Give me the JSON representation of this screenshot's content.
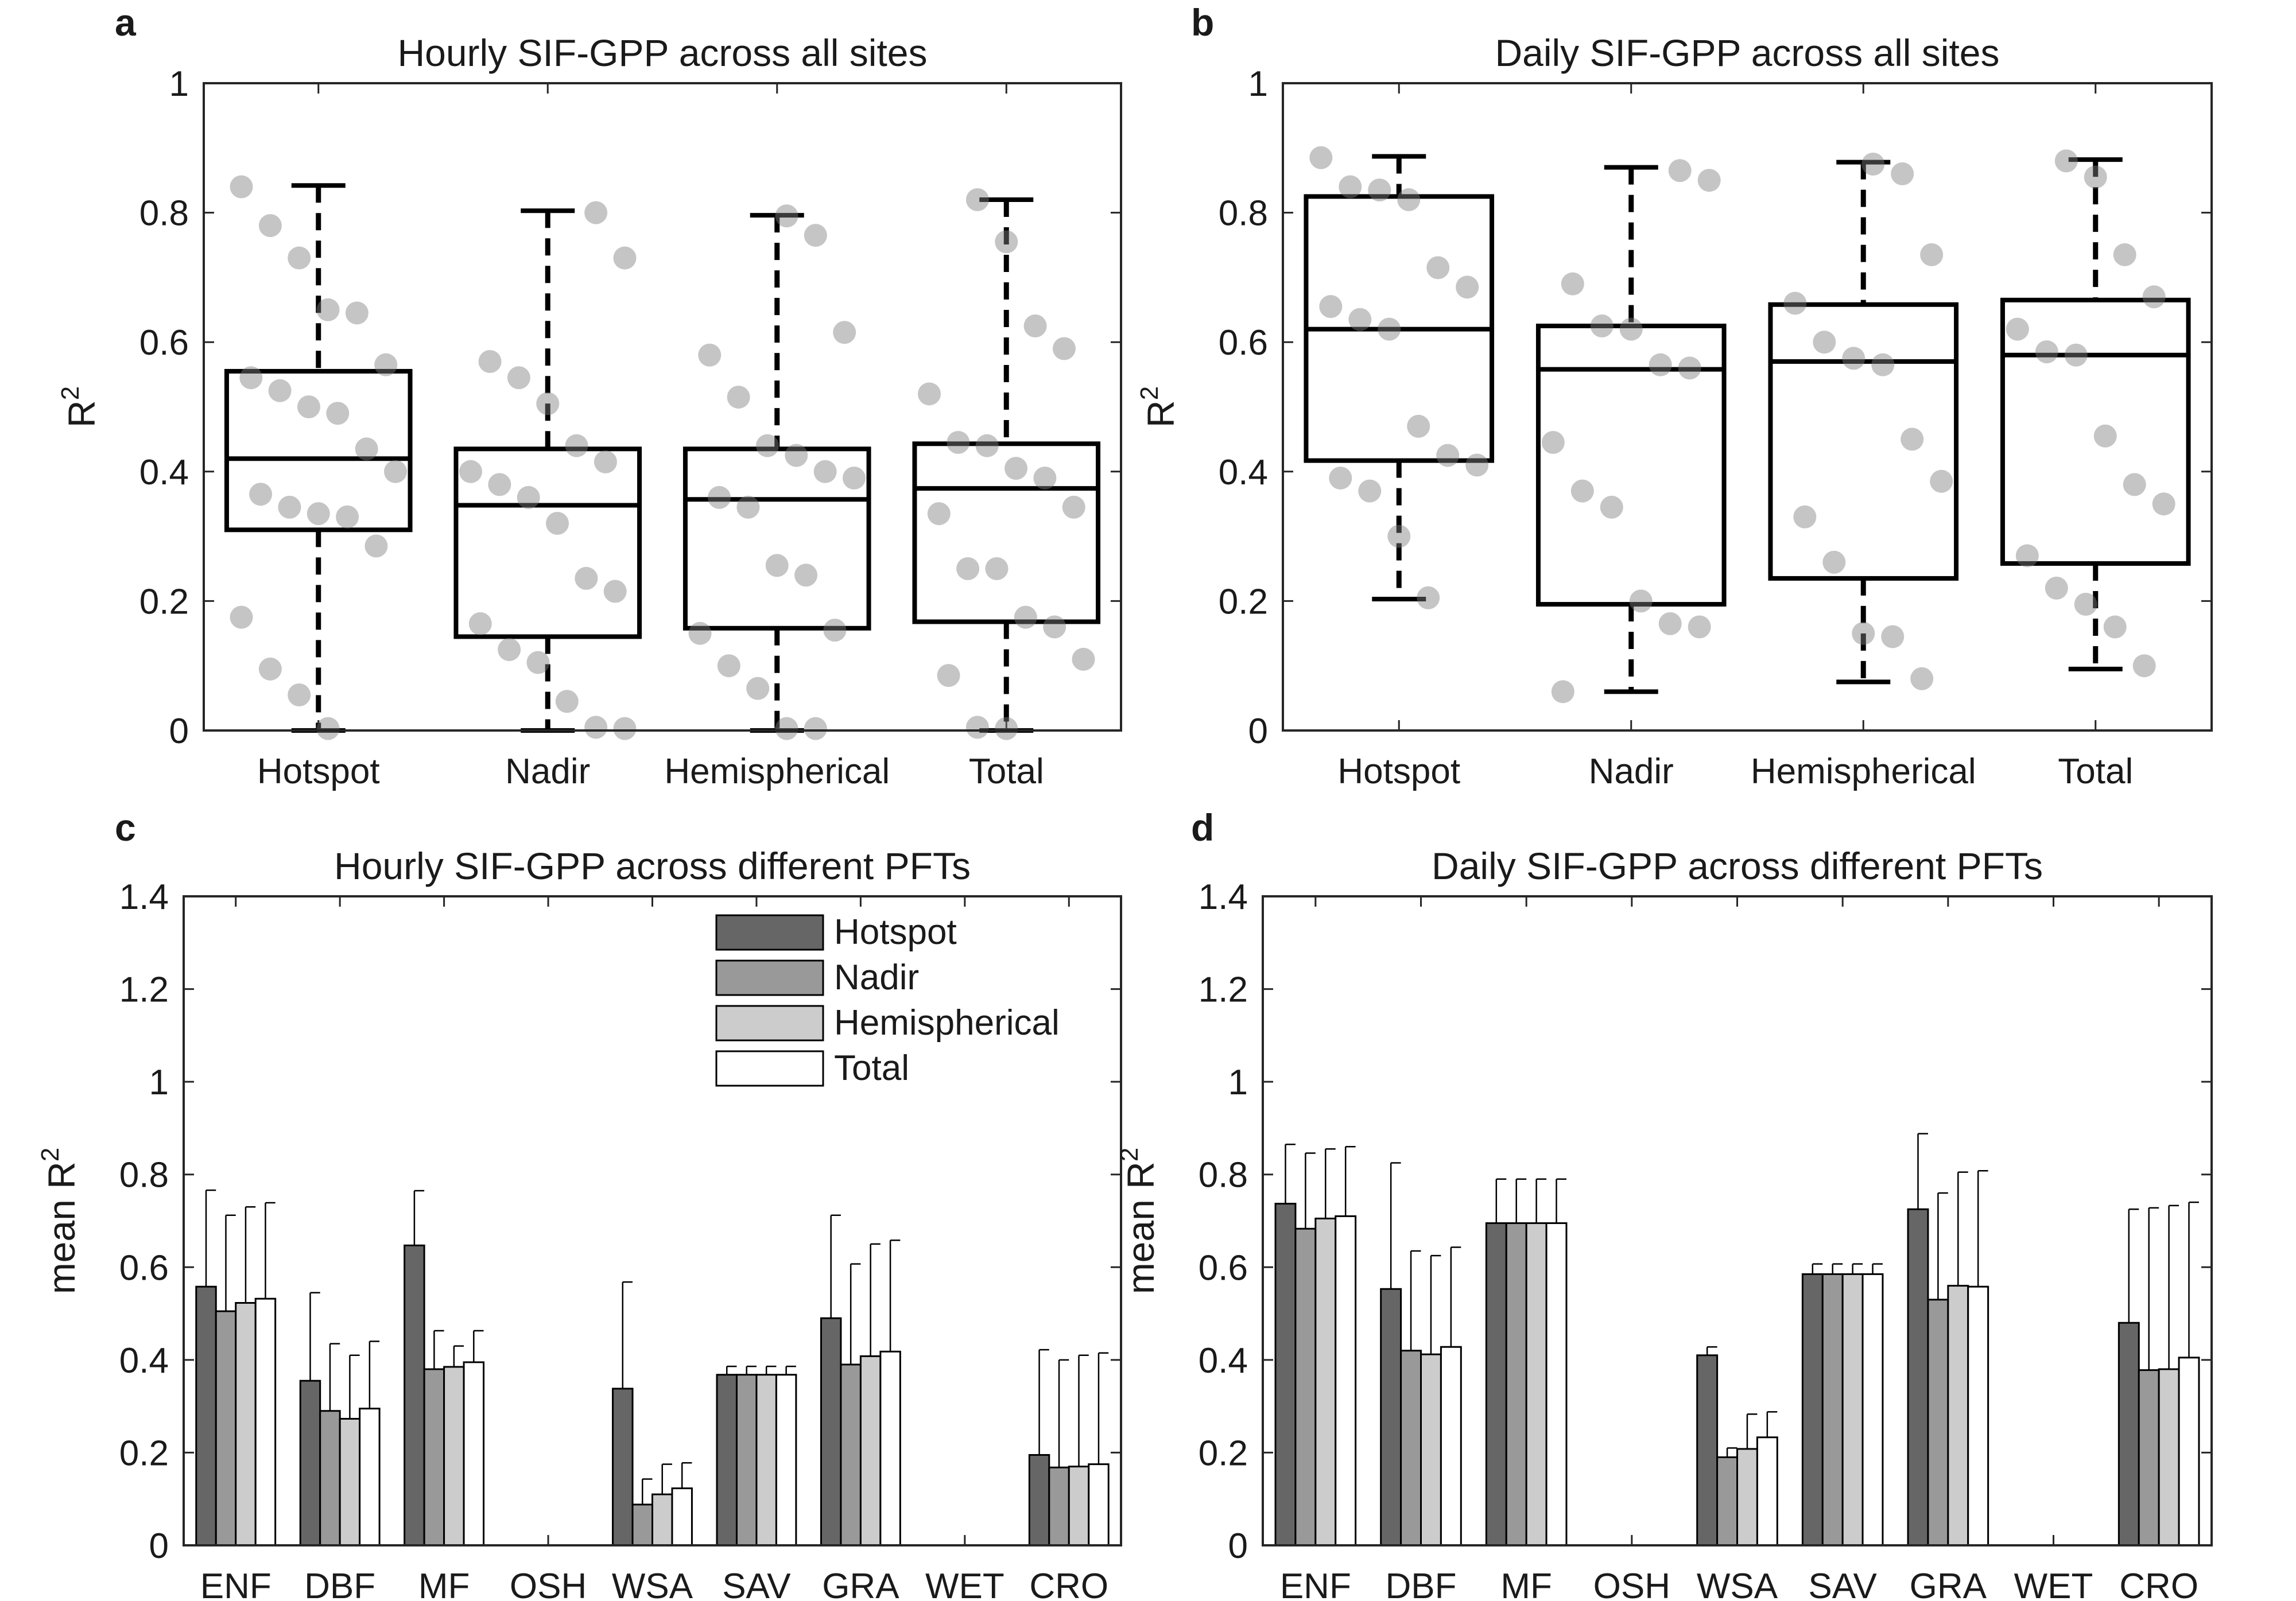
{
  "chart_data": [
    {
      "panel": "a",
      "type": "box",
      "title": "Hourly SIF-GPP across all sites",
      "ylabel": "R",
      "ylabel_sup": "2",
      "ylim": [
        0,
        1
      ],
      "yticks": [
        "0",
        "0.2",
        "0.4",
        "0.6",
        "0.8",
        "1"
      ],
      "categories": [
        "Hotspot",
        "Nadir",
        "Hemispherical",
        "Total"
      ],
      "boxes": [
        {
          "min": 0.0,
          "q1": 0.31,
          "median": 0.42,
          "q3": 0.555,
          "max": 0.842
        },
        {
          "min": 0.0,
          "q1": 0.145,
          "median": 0.348,
          "q3": 0.435,
          "max": 0.803
        },
        {
          "min": 0.0,
          "q1": 0.158,
          "median": 0.357,
          "q3": 0.435,
          "max": 0.796
        },
        {
          "min": 0.0,
          "q1": 0.168,
          "median": 0.374,
          "q3": 0.443,
          "max": 0.82
        }
      ],
      "points": [
        [
          0.84,
          0.78,
          0.73,
          0.65,
          0.645,
          0.565,
          0.545,
          0.525,
          0.5,
          0.49,
          0.435,
          0.4,
          0.365,
          0.345,
          0.335,
          0.33,
          0.285,
          0.175,
          0.095,
          0.055,
          0.003
        ],
        [
          0.8,
          0.73,
          0.57,
          0.545,
          0.505,
          0.44,
          0.415,
          0.4,
          0.38,
          0.36,
          0.32,
          0.235,
          0.215,
          0.165,
          0.125,
          0.105,
          0.045,
          0.005,
          0.003
        ],
        [
          0.795,
          0.765,
          0.615,
          0.58,
          0.515,
          0.44,
          0.425,
          0.4,
          0.39,
          0.36,
          0.345,
          0.255,
          0.24,
          0.155,
          0.15,
          0.1,
          0.065,
          0.003,
          0.003
        ],
        [
          0.82,
          0.755,
          0.625,
          0.59,
          0.52,
          0.445,
          0.44,
          0.405,
          0.39,
          0.345,
          0.335,
          0.25,
          0.25,
          0.175,
          0.16,
          0.11,
          0.085,
          0.005,
          0.003
        ]
      ]
    },
    {
      "panel": "b",
      "type": "box",
      "title": "Daily SIF-GPP across all sites",
      "ylabel": "R",
      "ylabel_sup": "2",
      "ylim": [
        0,
        1
      ],
      "yticks": [
        "0",
        "0.2",
        "0.4",
        "0.6",
        "0.8",
        "1"
      ],
      "categories": [
        "Hotspot",
        "Nadir",
        "Hemispherical",
        "Total"
      ],
      "boxes": [
        {
          "min": 0.203,
          "q1": 0.417,
          "median": 0.62,
          "q3": 0.825,
          "max": 0.887
        },
        {
          "min": 0.06,
          "q1": 0.195,
          "median": 0.558,
          "q3": 0.625,
          "max": 0.87
        },
        {
          "min": 0.075,
          "q1": 0.235,
          "median": 0.57,
          "q3": 0.658,
          "max": 0.878
        },
        {
          "min": 0.095,
          "q1": 0.258,
          "median": 0.58,
          "q3": 0.665,
          "max": 0.882
        }
      ],
      "points": [
        [
          0.885,
          0.84,
          0.835,
          0.82,
          0.715,
          0.685,
          0.655,
          0.635,
          0.62,
          0.47,
          0.425,
          0.41,
          0.39,
          0.37,
          0.3,
          0.205
        ],
        [
          0.865,
          0.85,
          0.69,
          0.625,
          0.62,
          0.565,
          0.56,
          0.445,
          0.37,
          0.345,
          0.2,
          0.165,
          0.16,
          0.06
        ],
        [
          0.875,
          0.86,
          0.735,
          0.66,
          0.6,
          0.575,
          0.565,
          0.45,
          0.385,
          0.33,
          0.26,
          0.15,
          0.145,
          0.08
        ],
        [
          0.88,
          0.855,
          0.735,
          0.67,
          0.62,
          0.585,
          0.58,
          0.455,
          0.38,
          0.35,
          0.27,
          0.22,
          0.195,
          0.16,
          0.1
        ]
      ]
    },
    {
      "panel": "c",
      "type": "bar",
      "title": "Hourly SIF-GPP across different PFTs",
      "ylabel": "mean R",
      "ylabel_sup": "2",
      "ylim": [
        0,
        1.4
      ],
      "yticks": [
        "0",
        "0.2",
        "0.4",
        "0.6",
        "0.8",
        "1",
        "1.2",
        "1.4"
      ],
      "categories": [
        "ENF",
        "DBF",
        "MF",
        "OSH",
        "WSA",
        "SAV",
        "GRA",
        "WET",
        "CRO"
      ],
      "legend": "top-right",
      "series": [
        {
          "name": "Hotspot",
          "color": "#666666",
          "values": [
            0.558,
            0.355,
            0.647,
            null,
            0.338,
            0.368,
            0.49,
            null,
            0.195
          ],
          "errors": [
            0.208,
            0.19,
            0.118,
            null,
            0.23,
            0.018,
            0.222,
            null,
            0.227
          ]
        },
        {
          "name": "Nadir",
          "color": "#999999",
          "values": [
            0.505,
            0.29,
            0.38,
            null,
            0.088,
            0.368,
            0.39,
            null,
            0.168
          ],
          "errors": [
            0.207,
            0.145,
            0.083,
            null,
            0.055,
            0.018,
            0.217,
            null,
            0.232
          ]
        },
        {
          "name": "Hemispherical",
          "color": "#cccccc",
          "values": [
            0.523,
            0.273,
            0.385,
            null,
            0.11,
            0.368,
            0.408,
            null,
            0.17
          ],
          "errors": [
            0.207,
            0.137,
            0.045,
            null,
            0.065,
            0.018,
            0.242,
            null,
            0.24
          ]
        },
        {
          "name": "Total",
          "color": "#ffffff",
          "values": [
            0.532,
            0.295,
            0.395,
            null,
            0.123,
            0.368,
            0.418,
            null,
            0.175
          ],
          "errors": [
            0.207,
            0.145,
            0.068,
            null,
            0.055,
            0.018,
            0.24,
            null,
            0.24
          ]
        }
      ]
    },
    {
      "panel": "d",
      "type": "bar",
      "title": "Daily SIF-GPP across different PFTs",
      "ylabel": "mean R",
      "ylabel_sup": "2",
      "ylim": [
        0,
        1.4
      ],
      "yticks": [
        "0",
        "0.2",
        "0.4",
        "0.6",
        "0.8",
        "1",
        "1.2",
        "1.4"
      ],
      "categories": [
        "ENF",
        "DBF",
        "MF",
        "OSH",
        "WSA",
        "SAV",
        "GRA",
        "WET",
        "CRO"
      ],
      "series": [
        {
          "name": "Hotspot",
          "color": "#666666",
          "values": [
            0.737,
            0.553,
            0.695,
            null,
            0.41,
            0.585,
            0.725,
            null,
            0.48
          ],
          "errors": [
            0.128,
            0.272,
            0.095,
            null,
            0.018,
            0.022,
            0.163,
            null,
            0.245
          ]
        },
        {
          "name": "Nadir",
          "color": "#999999",
          "values": [
            0.683,
            0.42,
            0.695,
            null,
            0.19,
            0.585,
            0.53,
            null,
            0.378
          ],
          "errors": [
            0.163,
            0.215,
            0.095,
            null,
            0.02,
            0.022,
            0.23,
            null,
            0.35
          ]
        },
        {
          "name": "Hemispherical",
          "color": "#cccccc",
          "values": [
            0.705,
            0.412,
            0.695,
            null,
            0.208,
            0.585,
            0.56,
            null,
            0.38
          ],
          "errors": [
            0.15,
            0.213,
            0.095,
            null,
            0.075,
            0.022,
            0.245,
            null,
            0.353
          ]
        },
        {
          "name": "Total",
          "color": "#ffffff",
          "values": [
            0.71,
            0.428,
            0.695,
            null,
            0.233,
            0.585,
            0.558,
            null,
            0.405
          ],
          "errors": [
            0.15,
            0.215,
            0.095,
            null,
            0.055,
            0.022,
            0.25,
            null,
            0.335
          ]
        }
      ]
    }
  ]
}
